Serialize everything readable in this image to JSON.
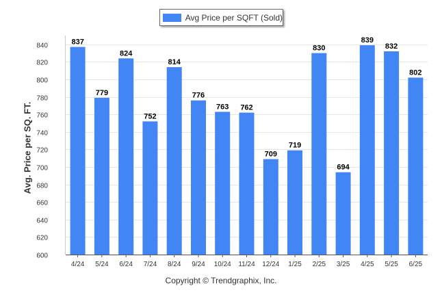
{
  "colors": {
    "bar": "#4285f4",
    "grid": "#e6e6e6",
    "axis": "#555555",
    "text": "#333333"
  },
  "legend": {
    "label": "Avg Price per SQFT (Sold)"
  },
  "footer": {
    "copyright": "Copyright © Trendgraphix, Inc."
  },
  "chart_data": {
    "type": "bar",
    "categories": [
      "4/24",
      "5/24",
      "6/24",
      "7/24",
      "8/24",
      "9/24",
      "10/24",
      "11/24",
      "12/24",
      "1/25",
      "2/25",
      "3/25",
      "4/25",
      "5/25",
      "6/25"
    ],
    "series": [
      {
        "name": "Avg Price per SQFT (Sold)",
        "values": [
          837,
          779,
          824,
          752,
          814,
          776,
          763,
          762,
          709,
          719,
          830,
          694,
          839,
          832,
          802
        ]
      }
    ],
    "ylabel": "Avg. Price per SQ. FT.",
    "xlabel": "",
    "ylim": [
      600,
      850
    ],
    "yticks": [
      600,
      620,
      640,
      660,
      680,
      700,
      720,
      740,
      760,
      780,
      800,
      820,
      840
    ],
    "grid": true,
    "legend_position": "top-center",
    "data_labels": true
  }
}
